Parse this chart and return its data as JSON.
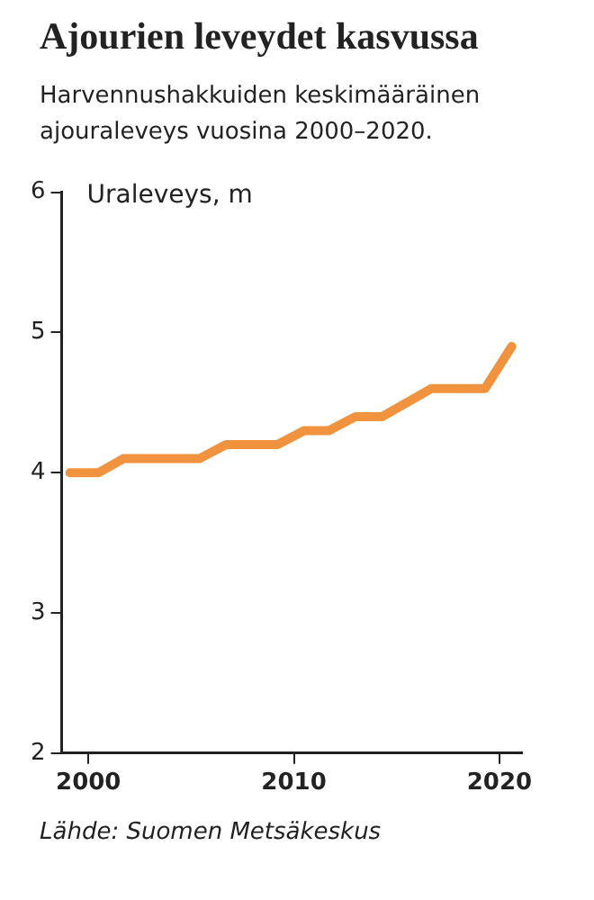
{
  "chart_data": {
    "type": "line",
    "title": "Ajourien leveydet kasvussa",
    "subtitle": "Harvennushakkuiden keskimääräinen ajouraleveys vuosina 2000–2020.",
    "ylabel": "Uraleveys, m",
    "annotations": [
      "Lähde: Suomen Metsäkeskus"
    ],
    "series": [
      {
        "color": "#f0923e",
        "x": [
          1999.1,
          2000.5,
          2001.7,
          2005.4,
          2006.7,
          2009.2,
          2010.5,
          2011.7,
          2013.0,
          2014.3,
          2016.7,
          2019.3,
          2020.6
        ],
        "values": [
          4.0,
          4.0,
          4.1,
          4.1,
          4.2,
          4.2,
          4.3,
          4.3,
          4.4,
          4.4,
          4.6,
          4.6,
          4.9
        ]
      }
    ],
    "xlim": [
      1998.7,
      2021.1
    ],
    "xticks": [
      2000,
      2010,
      2020
    ],
    "ylim": [
      2,
      6
    ],
    "yticks": [
      2,
      3,
      4,
      5,
      6
    ],
    "grid": false,
    "legend": false,
    "marker": "none",
    "line_style": "solid"
  }
}
